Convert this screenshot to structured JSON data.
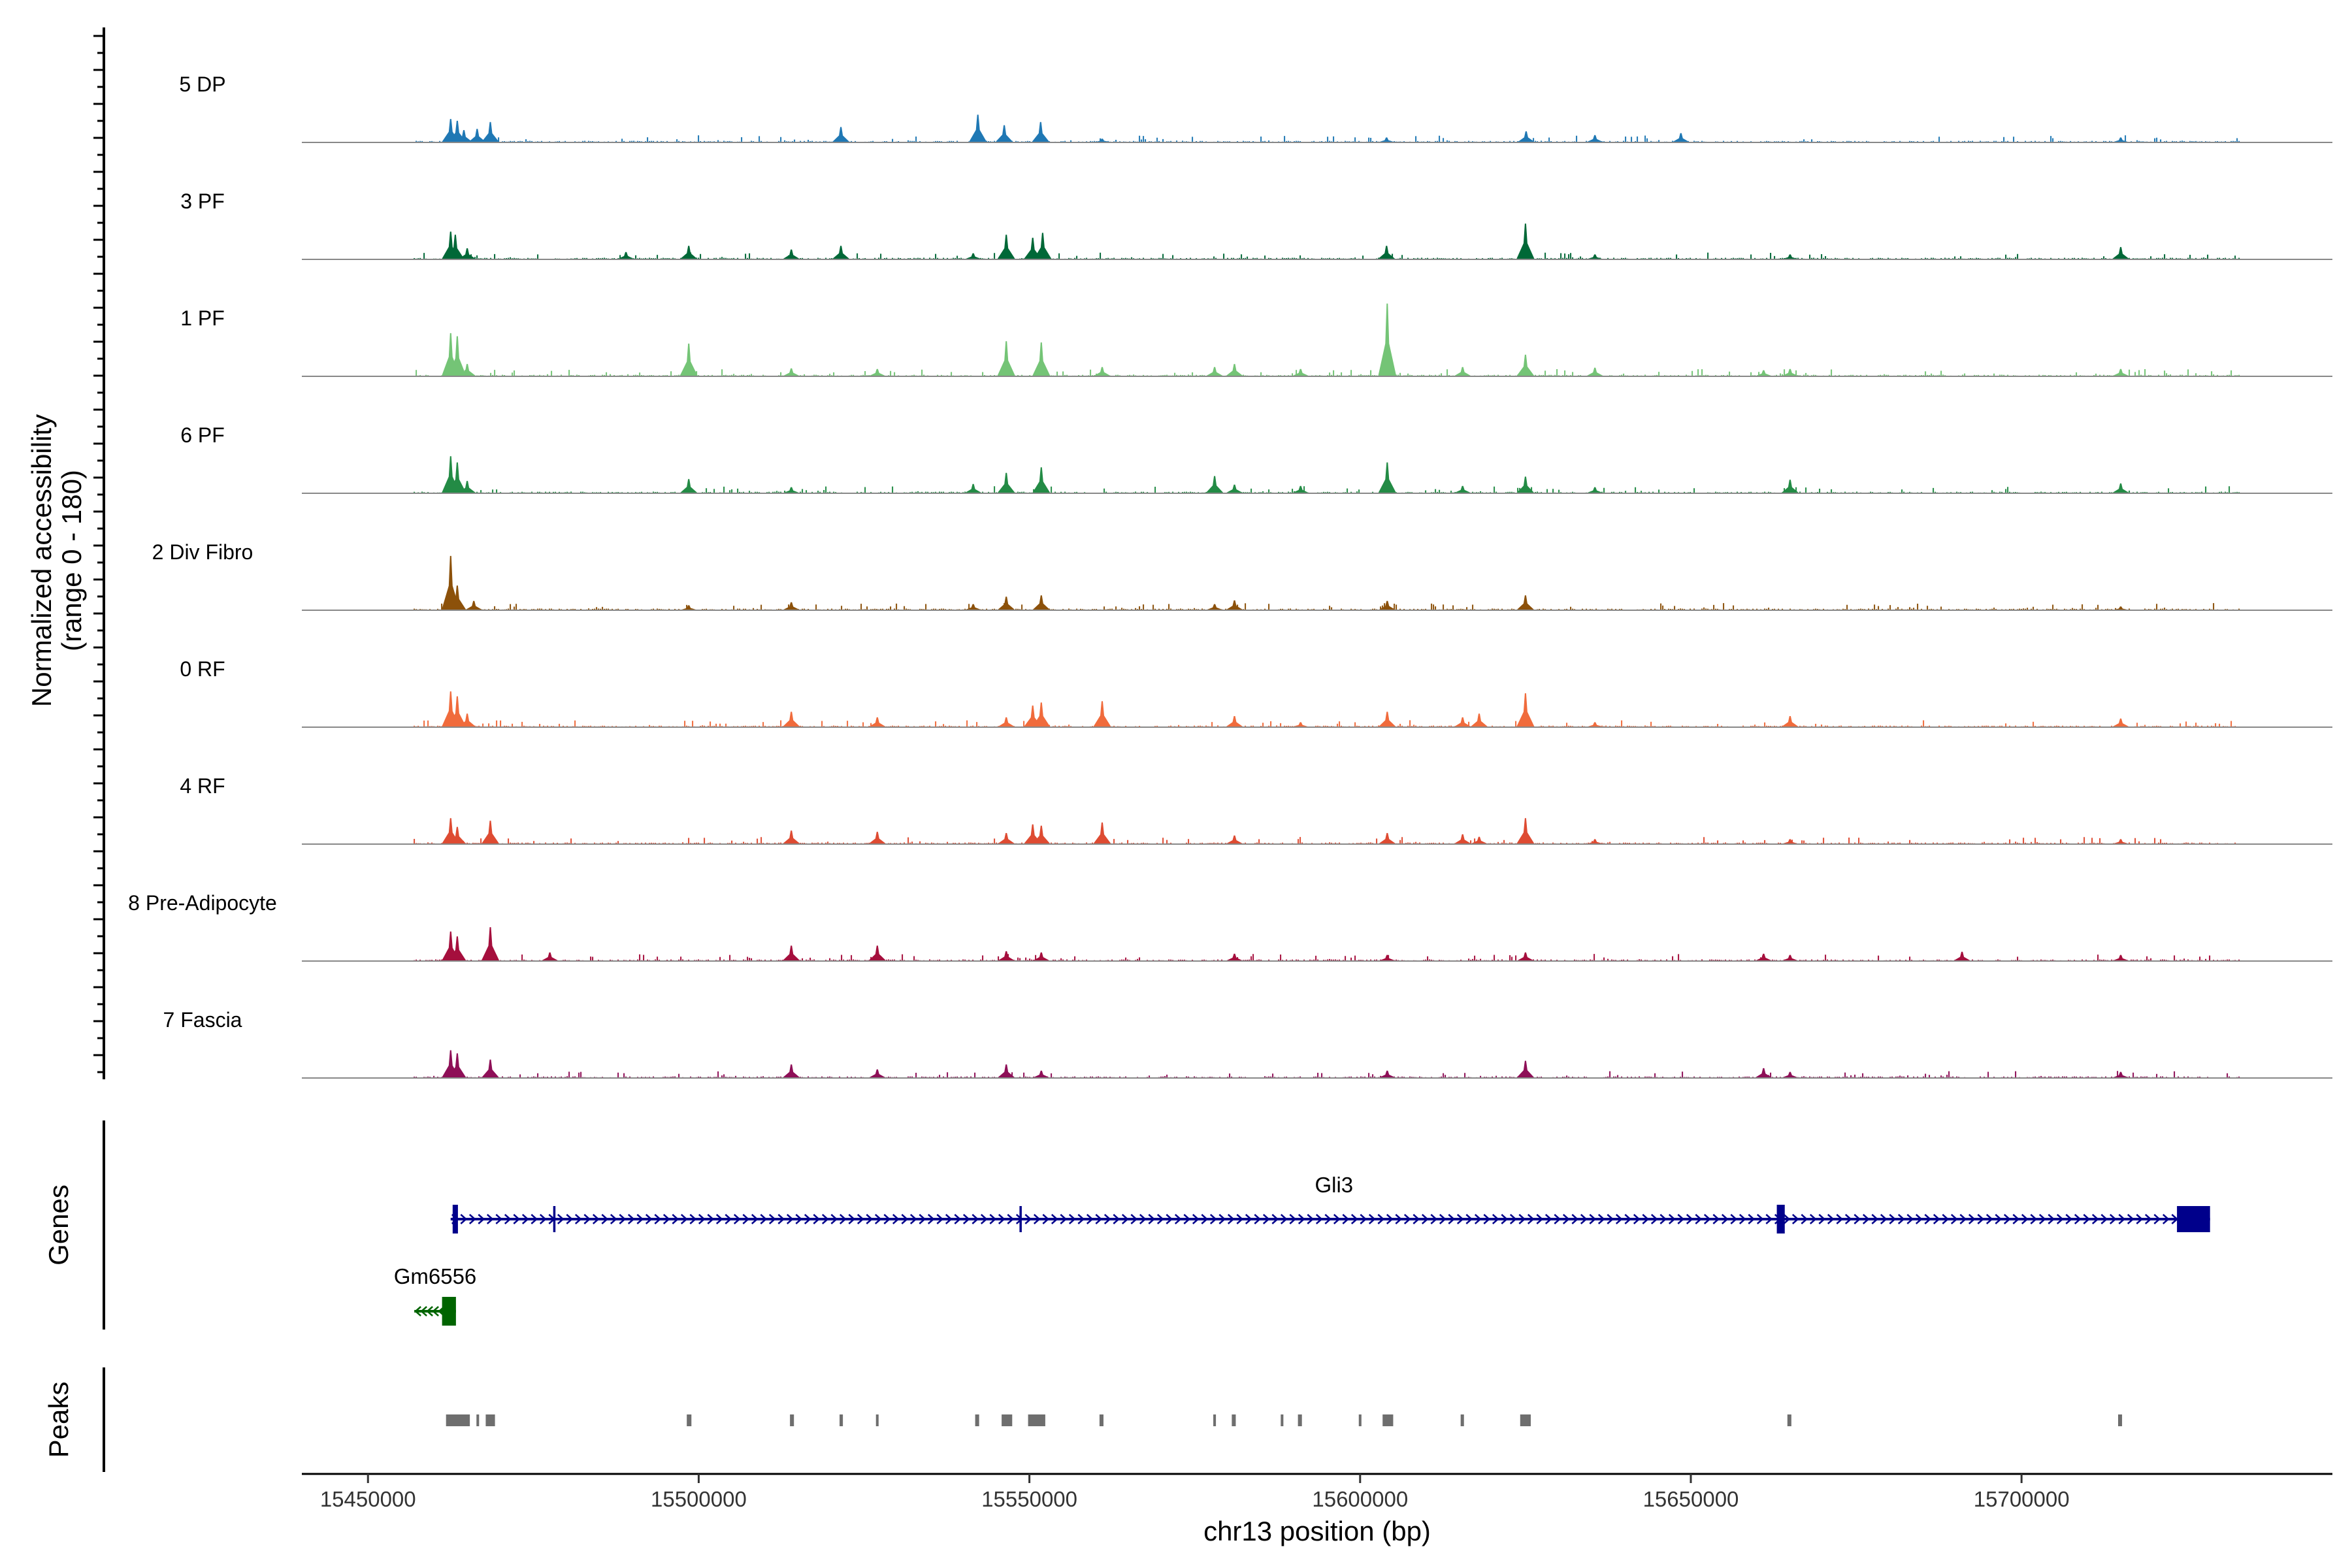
{
  "chart_data": {
    "type": "coverage",
    "ylabel_line1": "Normalized accessibility",
    "ylabel_line2": "(range 0 - 180)",
    "yrange": [
      0,
      180
    ],
    "xlabel": "chr13 position (bp)",
    "xlim": [
      15440000,
      15747000
    ],
    "x_ticks": [
      15450000,
      15500000,
      15550000,
      15600000,
      15650000,
      15700000
    ],
    "x_tick_labels": [
      "15450000",
      "15500000",
      "15550000",
      "15600000",
      "15650000",
      "15700000"
    ],
    "region": [
      15457000,
      15733000
    ],
    "tracks": [
      {
        "label": "5 DP",
        "color": "#1F78B4",
        "peaks": [
          [
            15462500,
            38
          ],
          [
            15463500,
            35
          ],
          [
            15464500,
            20
          ],
          [
            15466500,
            22
          ],
          [
            15468500,
            33
          ],
          [
            15521500,
            25
          ],
          [
            15542200,
            45
          ],
          [
            15546200,
            28
          ],
          [
            15551700,
            33
          ],
          [
            15561000,
            6
          ],
          [
            15604000,
            8
          ],
          [
            15625100,
            18
          ],
          [
            15635500,
            12
          ],
          [
            15648500,
            15
          ],
          [
            15715000,
            8
          ]
        ]
      },
      {
        "label": "3 PF",
        "color": "#006837",
        "peaks": [
          [
            15462500,
            45
          ],
          [
            15463200,
            40
          ],
          [
            15465000,
            18
          ],
          [
            15489000,
            12
          ],
          [
            15498500,
            22
          ],
          [
            15514000,
            16
          ],
          [
            15521500,
            22
          ],
          [
            15541500,
            10
          ],
          [
            15546500,
            40
          ],
          [
            15550500,
            35
          ],
          [
            15552000,
            43
          ],
          [
            15604000,
            22
          ],
          [
            15625000,
            58
          ],
          [
            15635500,
            8
          ],
          [
            15665000,
            8
          ],
          [
            15715000,
            20
          ]
        ]
      },
      {
        "label": "1 PF",
        "color": "#74C476",
        "peaks": [
          [
            15462500,
            70
          ],
          [
            15463500,
            65
          ],
          [
            15465000,
            20
          ],
          [
            15498500,
            53
          ],
          [
            15514000,
            13
          ],
          [
            15527000,
            12
          ],
          [
            15546500,
            57
          ],
          [
            15551800,
            55
          ],
          [
            15561000,
            15
          ],
          [
            15578000,
            15
          ],
          [
            15581000,
            20
          ],
          [
            15591000,
            12
          ],
          [
            15604100,
            118
          ],
          [
            15615500,
            15
          ],
          [
            15625000,
            35
          ],
          [
            15635500,
            14
          ],
          [
            15661000,
            10
          ],
          [
            15665000,
            12
          ],
          [
            15715000,
            12
          ]
        ]
      },
      {
        "label": "6 PF",
        "color": "#238B45",
        "peaks": [
          [
            15462500,
            60
          ],
          [
            15463500,
            50
          ],
          [
            15465000,
            20
          ],
          [
            15498500,
            23
          ],
          [
            15514000,
            10
          ],
          [
            15541500,
            15
          ],
          [
            15546500,
            33
          ],
          [
            15551800,
            42
          ],
          [
            15578000,
            28
          ],
          [
            15581000,
            14
          ],
          [
            15591000,
            12
          ],
          [
            15604100,
            50
          ],
          [
            15615500,
            12
          ],
          [
            15625000,
            27
          ],
          [
            15635500,
            10
          ],
          [
            15665000,
            22
          ],
          [
            15715000,
            16
          ]
        ]
      },
      {
        "label": "2 Div Fibro",
        "color": "#8C510A",
        "peaks": [
          [
            15462500,
            88
          ],
          [
            15463500,
            40
          ],
          [
            15466000,
            15
          ],
          [
            15498500,
            8
          ],
          [
            15514000,
            13
          ],
          [
            15541500,
            10
          ],
          [
            15546500,
            22
          ],
          [
            15551800,
            24
          ],
          [
            15578000,
            10
          ],
          [
            15581000,
            16
          ],
          [
            15604100,
            15
          ],
          [
            15625000,
            24
          ],
          [
            15715000,
            6
          ]
        ]
      },
      {
        "label": "0 RF",
        "color": "#F06B3C",
        "peaks": [
          [
            15462500,
            58
          ],
          [
            15463500,
            50
          ],
          [
            15465000,
            22
          ],
          [
            15514000,
            25
          ],
          [
            15527000,
            16
          ],
          [
            15546500,
            16
          ],
          [
            15550500,
            35
          ],
          [
            15551800,
            40
          ],
          [
            15561000,
            42
          ],
          [
            15581000,
            18
          ],
          [
            15591000,
            8
          ],
          [
            15604100,
            25
          ],
          [
            15615500,
            16
          ],
          [
            15618000,
            22
          ],
          [
            15625000,
            55
          ],
          [
            15635500,
            8
          ],
          [
            15665000,
            18
          ],
          [
            15715000,
            14
          ]
        ]
      },
      {
        "label": "4 RF",
        "color": "#DE4B32",
        "peaks": [
          [
            15462500,
            42
          ],
          [
            15463500,
            28
          ],
          [
            15468500,
            38
          ],
          [
            15514000,
            22
          ],
          [
            15527000,
            20
          ],
          [
            15546500,
            18
          ],
          [
            15550500,
            32
          ],
          [
            15551800,
            30
          ],
          [
            15561000,
            35
          ],
          [
            15581000,
            14
          ],
          [
            15604100,
            18
          ],
          [
            15615500,
            16
          ],
          [
            15618000,
            12
          ],
          [
            15625000,
            42
          ],
          [
            15635500,
            8
          ],
          [
            15665000,
            8
          ],
          [
            15715000,
            8
          ]
        ]
      },
      {
        "label": "8 Pre-Adipocyte",
        "color": "#A50F3D",
        "peaks": [
          [
            15462500,
            48
          ],
          [
            15463500,
            40
          ],
          [
            15468500,
            55
          ],
          [
            15477500,
            14
          ],
          [
            15514000,
            25
          ],
          [
            15527000,
            25
          ],
          [
            15546500,
            16
          ],
          [
            15551800,
            14
          ],
          [
            15581000,
            12
          ],
          [
            15604100,
            10
          ],
          [
            15625000,
            14
          ],
          [
            15661000,
            12
          ],
          [
            15665000,
            10
          ],
          [
            15691000,
            15
          ],
          [
            15715000,
            10
          ]
        ]
      },
      {
        "label": "7 Fascia",
        "color": "#8E0F57",
        "peaks": [
          [
            15462500,
            45
          ],
          [
            15463500,
            40
          ],
          [
            15468500,
            30
          ],
          [
            15514000,
            22
          ],
          [
            15527000,
            14
          ],
          [
            15546500,
            22
          ],
          [
            15551800,
            12
          ],
          [
            15604100,
            12
          ],
          [
            15625000,
            28
          ],
          [
            15661000,
            16
          ],
          [
            15665000,
            10
          ],
          [
            15715000,
            10
          ]
        ]
      }
    ],
    "genes": [
      {
        "name": "Gli3",
        "strand": "+",
        "start": 15462500,
        "end": 15728500,
        "color": "#00008B",
        "exons": [
          [
            15462800,
            15463600
          ],
          [
            15478000,
            15478300
          ],
          [
            15548500,
            15548800
          ],
          [
            15663000,
            15664200
          ],
          [
            15723500,
            15728500
          ]
        ]
      },
      {
        "name": "Gm6556",
        "strand": "-",
        "start": 15457000,
        "end": 15463300,
        "color": "#006400",
        "exons": [
          [
            15461200,
            15463300
          ]
        ]
      }
    ],
    "peak_regions": [
      [
        15461800,
        15465400
      ],
      [
        15466400,
        15466800
      ],
      [
        15467800,
        15469200
      ],
      [
        15498200,
        15498900
      ],
      [
        15513800,
        15514400
      ],
      [
        15521300,
        15521800
      ],
      [
        15526800,
        15527200
      ],
      [
        15541800,
        15542400
      ],
      [
        15545800,
        15547400
      ],
      [
        15549800,
        15552400
      ],
      [
        15560600,
        15561200
      ],
      [
        15577800,
        15578200
      ],
      [
        15580600,
        15581200
      ],
      [
        15588000,
        15588400
      ],
      [
        15590600,
        15591200
      ],
      [
        15599800,
        15600200
      ],
      [
        15603400,
        15605000
      ],
      [
        15615200,
        15615700
      ],
      [
        15624200,
        15625800
      ],
      [
        15664600,
        15665200
      ],
      [
        15714600,
        15715200
      ]
    ]
  },
  "side_titles": {
    "genes": "Genes",
    "peaks": "Peaks"
  }
}
